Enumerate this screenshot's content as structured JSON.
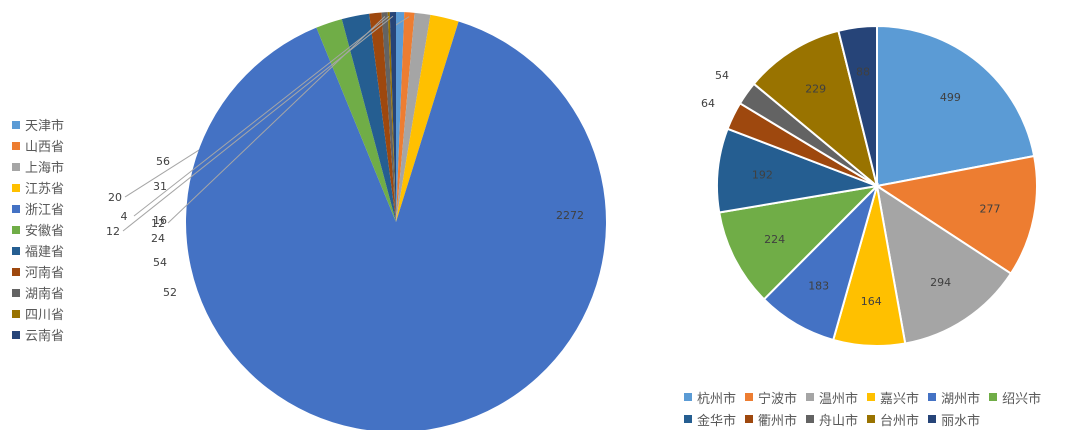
{
  "chart_data": [
    {
      "type": "pie",
      "categories": [
        "天津市",
        "山西省",
        "上海市",
        "江苏省",
        "浙江省",
        "安徽省",
        "福建省",
        "河南省",
        "湖南省",
        "四川省",
        "云南省"
      ],
      "values": [
        16,
        20,
        31,
        56,
        2272,
        52,
        54,
        24,
        12,
        4,
        12
      ],
      "colors": [
        "#5B9BD5",
        "#ED7D31",
        "#A5A5A5",
        "#FFC000",
        "#4472C4",
        "#70AD47",
        "#255E91",
        "#9E480E",
        "#636363",
        "#997300",
        "#264478"
      ],
      "legend": "left"
    },
    {
      "type": "pie",
      "categories": [
        "杭州市",
        "宁波市",
        "温州市",
        "嘉兴市",
        "湖州市",
        "绍兴市",
        "金华市",
        "衢州市",
        "舟山市",
        "台州市",
        "丽水市"
      ],
      "values": [
        499,
        277,
        294,
        164,
        183,
        224,
        192,
        64,
        54,
        229,
        88
      ],
      "colors": [
        "#5B9BD5",
        "#ED7D31",
        "#A5A5A5",
        "#FFC000",
        "#4472C4",
        "#70AD47",
        "#255E91",
        "#9E480E",
        "#636363",
        "#997300",
        "#264478"
      ],
      "legend": "bottom"
    }
  ]
}
